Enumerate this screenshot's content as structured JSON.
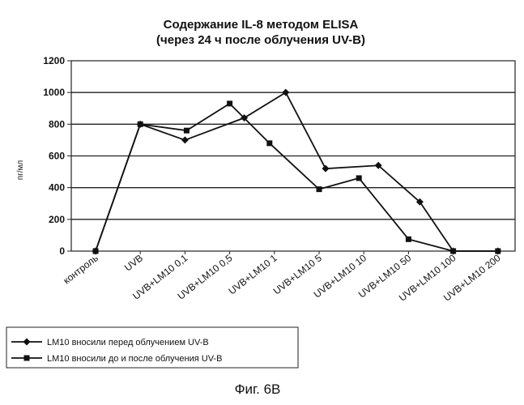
{
  "chart_data": {
    "type": "line",
    "title": [
      "Содержание IL-8 методом ELISA",
      "(через 24 ч после облучения UV-B)"
    ],
    "ylabel": "пг/мл",
    "ylim": [
      0,
      1200
    ],
    "yticks": [
      0,
      200,
      400,
      600,
      800,
      1000,
      1200
    ],
    "grid": true,
    "categories": [
      "контроль",
      "UVB",
      "UVB+LM10  0,1",
      "UVB+LM10  0,5",
      "UVB+LM10  1",
      "UVB+LM10  5",
      "UVB+LM10  10",
      "UVB+LM10  50",
      "UVB+LM10  100",
      "UVB+LM10  200"
    ],
    "series": [
      {
        "name": "LM10 вносили перед облучением UV-B",
        "marker": "diamond",
        "values": [
          0,
          800,
          700,
          840,
          1000,
          520,
          540,
          310,
          0,
          0
        ]
      },
      {
        "name": "LM10 вносили до и после облучения UV-B",
        "marker": "square",
        "values": [
          0,
          800,
          760,
          930,
          680,
          390,
          460,
          75,
          0,
          0
        ]
      }
    ],
    "legend_position": "bottom-left"
  },
  "caption": "Фиг. 6B"
}
